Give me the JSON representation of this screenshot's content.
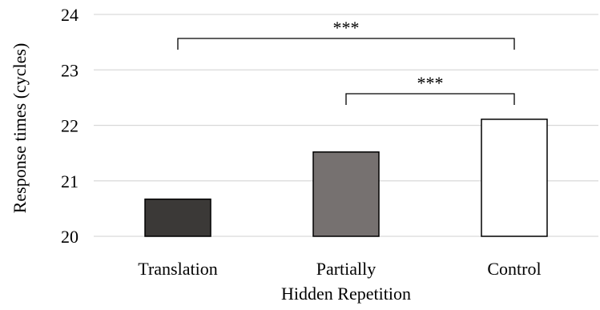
{
  "chart_data": {
    "type": "bar",
    "categories": [
      "Translation",
      "Partially\nHidden Repetition",
      "Control"
    ],
    "values": [
      20.67,
      21.52,
      22.11
    ],
    "bar_colors": [
      "#3b3937",
      "#767170",
      "#ffffff"
    ],
    "title": "",
    "xlabel": "",
    "ylabel": "Response times (cycles)",
    "ylim": [
      20,
      24
    ],
    "yticks": [
      "20",
      "21",
      "22",
      "23",
      "24"
    ],
    "grid": true,
    "legend": "none",
    "significance": [
      {
        "from": 0,
        "to": 2,
        "label": "***"
      },
      {
        "from": 1,
        "to": 2,
        "label": "***"
      }
    ]
  }
}
